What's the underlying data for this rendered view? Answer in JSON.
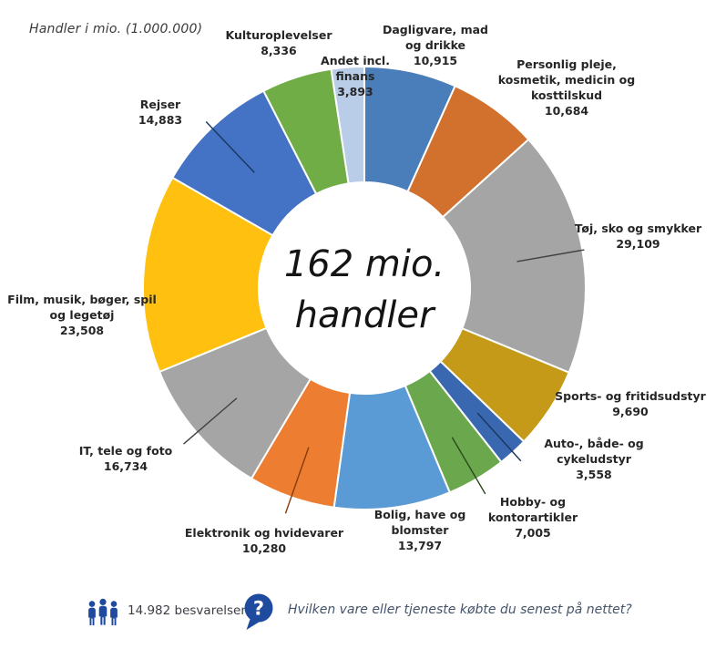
{
  "title": "Handler i mio. (1.000.000)",
  "center": {
    "line1": "162 mio.",
    "line2": "handler"
  },
  "chart_data": {
    "type": "pie",
    "subtype": "donut",
    "title": "Handler i mio. (1.000.000)",
    "center_text": "162 mio. handler",
    "total": 162.392,
    "unit": "mio. handler",
    "start_angle_deg": 0,
    "direction": "clockwise",
    "segments": [
      {
        "key": "dagligvare",
        "label": "Dagligvare, mad\nog drikke",
        "value": 10.915,
        "value_label": "10,915",
        "color": "#4A7EBB"
      },
      {
        "key": "personlig-pleje",
        "label": "Personlig pleje,\nkosmetik, medicin og\nkosttilskud",
        "value": 10.684,
        "value_label": "10,684",
        "color": "#D2712E"
      },
      {
        "key": "toj-sko-smykker",
        "label": "Tøj, sko og smykker",
        "value": 29.109,
        "value_label": "29,109",
        "color": "#A5A5A5",
        "leader": true,
        "leader_color": "#404040"
      },
      {
        "key": "sports-fritid",
        "label": "Sports- og fritidsudstyr",
        "value": 9.69,
        "value_label": "9,690",
        "color": "#C49A18"
      },
      {
        "key": "auto-baade-cykel",
        "label": "Auto-, både- og\ncykeludstyr",
        "value": 3.558,
        "value_label": "3,558",
        "color": "#3A68B0",
        "leader": true,
        "leader_color": "#17375E"
      },
      {
        "key": "hobby-kontor",
        "label": "Hobby- og\nkontorartikler",
        "value": 7.005,
        "value_label": "7,005",
        "color": "#6BA84D",
        "leader": true,
        "leader_color": "#2B4A1C"
      },
      {
        "key": "bolig-have",
        "label": "Bolig, have og\nblomster",
        "value": 13.797,
        "value_label": "13,797",
        "color": "#5B9BD5"
      },
      {
        "key": "elektronik",
        "label": "Elektronik og hvidevarer",
        "value": 10.28,
        "value_label": "10,280",
        "color": "#ED7D31",
        "leader": true,
        "leader_color": "#843C0C"
      },
      {
        "key": "it-tele-foto",
        "label": "IT, tele og foto",
        "value": 16.734,
        "value_label": "16,734",
        "color": "#A5A5A5",
        "leader": true,
        "leader_color": "#404040"
      },
      {
        "key": "film-musik",
        "label": "Film, musik, bøger, spil\nog legetøj",
        "value": 23.508,
        "value_label": "23,508",
        "color": "#FFC010"
      },
      {
        "key": "rejser",
        "label": "Rejser",
        "value": 14.883,
        "value_label": "14,883",
        "color": "#4472C4",
        "leader": true,
        "leader_color": "#17375E"
      },
      {
        "key": "kulturoplevelser",
        "label": "Kulturoplevelser",
        "value": 8.336,
        "value_label": "8,336",
        "color": "#70AD47"
      },
      {
        "key": "andet-finans",
        "label": "Andet incl.\nfinans",
        "value": 3.893,
        "value_label": "3,893",
        "color": "#B9CDE8"
      }
    ]
  },
  "footer": {
    "respondents_label": "14.982 besvarelser",
    "question": "Hvilken vare eller tjeneste købte du senest på nettet?",
    "icon_color": "#1F4B9E",
    "question_icon_glyph": "?"
  },
  "colors": {
    "background": "#FFFFFF",
    "label_text": "#262626",
    "segment_divider": "#FFFFFF"
  }
}
